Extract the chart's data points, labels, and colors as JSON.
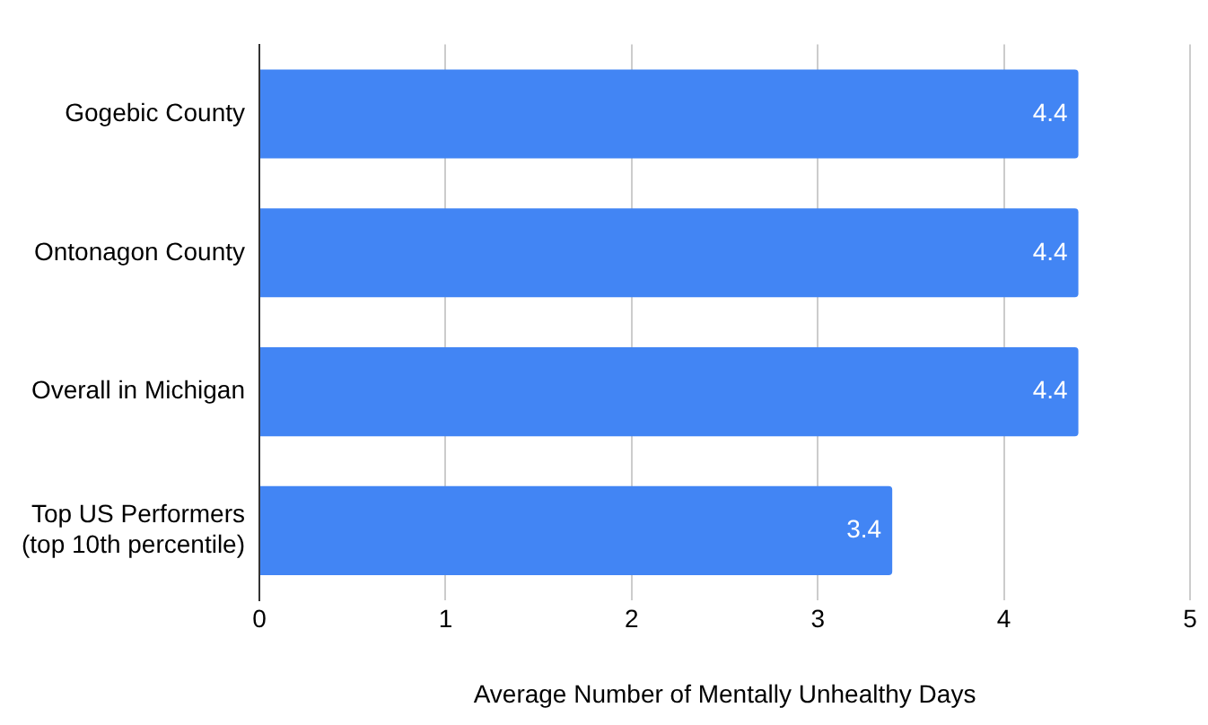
{
  "chart_data": {
    "type": "bar",
    "orientation": "horizontal",
    "xlabel": "Average Number of Mentally Unhealthy Days",
    "categories": [
      "Gogebic County",
      "Ontonagon County",
      "Overall in Michigan",
      "Top US Performers\n(top 10th percentile)"
    ],
    "values": [
      4.4,
      4.4,
      4.4,
      3.4
    ],
    "color": "#4285f4",
    "xlim": [
      0,
      5
    ],
    "xticks": [
      0,
      1,
      2,
      3,
      4,
      5
    ],
    "grid": "x",
    "data_labels": true,
    "legend": false
  }
}
